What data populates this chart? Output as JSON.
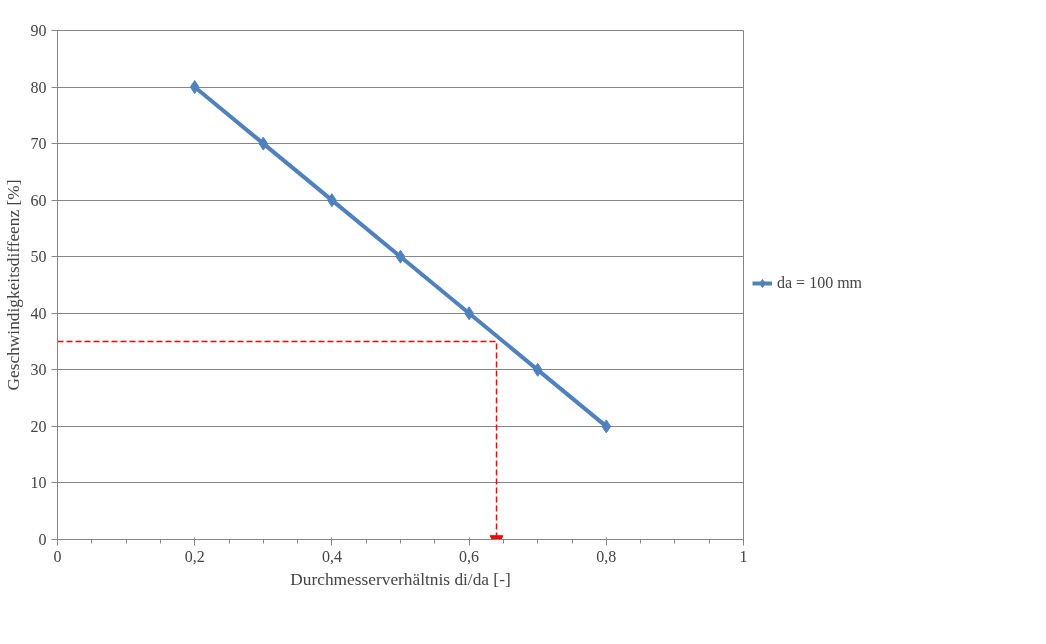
{
  "chart_data": {
    "type": "line",
    "xlabel": "Durchmesserverhältnis di/da [-]",
    "ylabel": "Geschwindigkeitsdiffeenz [%]",
    "xlim": [
      0,
      1
    ],
    "ylim": [
      0,
      90
    ],
    "xticks": [
      0,
      {
        "value": 0.2,
        "label": "0,2"
      },
      {
        "value": 0.4,
        "label": "0,4"
      },
      {
        "value": 0.6,
        "label": "0,6"
      },
      {
        "value": 0.8,
        "label": "0,8"
      },
      1
    ],
    "yticks": [
      0,
      10,
      20,
      30,
      40,
      50,
      60,
      70,
      80,
      90
    ],
    "grid": "y",
    "legend": "right",
    "series": [
      {
        "name": "da = 100 mm",
        "color": "#4f81bd",
        "x": [
          0.2,
          0.3,
          0.4,
          0.5,
          0.6,
          0.7,
          0.8
        ],
        "values": [
          80,
          70,
          60,
          50,
          40,
          30,
          20
        ],
        "marker": "diamond",
        "line_style": "solid"
      },
      {
        "color": "#ff0000",
        "x": [
          0,
          0.64,
          0.64
        ],
        "values": [
          35,
          35,
          0
        ],
        "marker": "none",
        "line_style": "dashed"
      }
    ]
  }
}
